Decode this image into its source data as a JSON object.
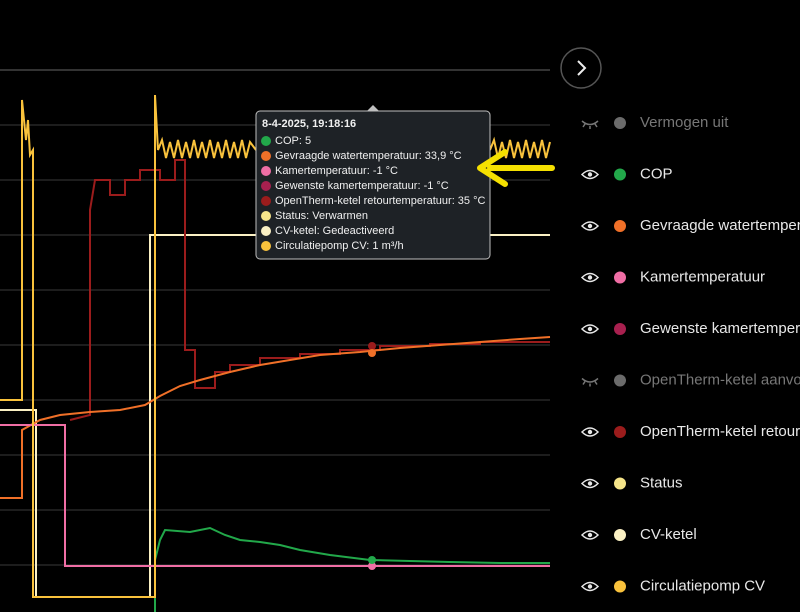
{
  "tooltip": {
    "time": "8-4-2025, 19:18:16",
    "items": [
      {
        "label": "COP: 5",
        "color": "#22a84a"
      },
      {
        "label": "Gevraagde watertemperatuur: 33,9 °C",
        "color": "#f07028"
      },
      {
        "label": "Kamertemperatuur: -1 °C",
        "color": "#f06ea5"
      },
      {
        "label": "Gewenste kamertemperatuur: -1 °C",
        "color": "#a8204f"
      },
      {
        "label": "OpenTherm-ketel retourtemperatuur: 35 °C",
        "color": "#9b1c1c"
      },
      {
        "label": "Status: Verwarmen",
        "color": "#f6e58a"
      },
      {
        "label": "CV-ketel: Gedeactiveerd",
        "color": "#fbf1c4"
      },
      {
        "label": "Circulatiepomp CV: 1 m³/h",
        "color": "#f9c23c"
      }
    ]
  },
  "legend": [
    {
      "name": "Vermogen uit",
      "color": "#6b6b6b",
      "hidden": true
    },
    {
      "name": "COP",
      "color": "#22a84a",
      "hidden": false
    },
    {
      "name": "Gevraagde watertemper",
      "color": "#f07028",
      "hidden": false
    },
    {
      "name": "Kamertemperatuur",
      "color": "#f06ea5",
      "hidden": false
    },
    {
      "name": "Gewenste kamertemper",
      "color": "#a8204f",
      "hidden": false
    },
    {
      "name": "OpenTherm-ketel aanvo",
      "color": "#6b6b6b",
      "hidden": true
    },
    {
      "name": "OpenTherm-ketel retour",
      "color": "#9b1c1c",
      "hidden": false
    },
    {
      "name": "Status",
      "color": "#f6e58a",
      "hidden": false
    },
    {
      "name": "CV-ketel",
      "color": "#fbf1c4",
      "hidden": false
    },
    {
      "name": "Circulatiepomp CV",
      "color": "#f9c23c",
      "hidden": false
    }
  ]
}
